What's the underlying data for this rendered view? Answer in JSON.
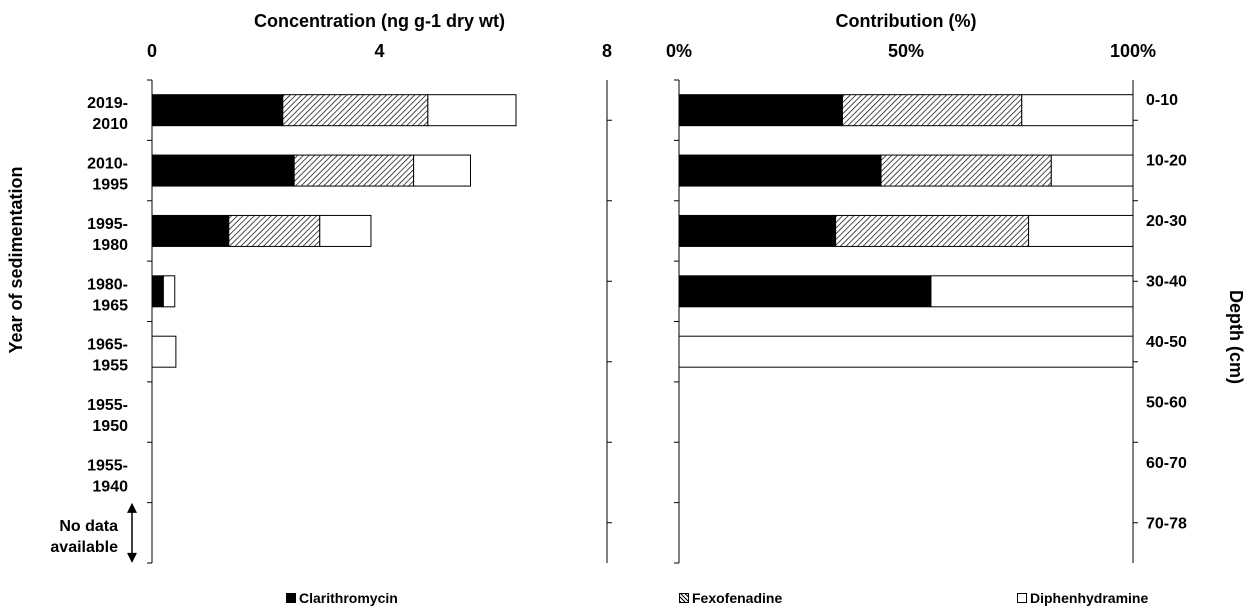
{
  "chart_data": [
    {
      "type": "bar",
      "orientation": "horizontal",
      "stacked": true,
      "title": "Concentration (ng g-1 dry wt)",
      "ylabel": "Year of sedimentation",
      "xlim": [
        0,
        8
      ],
      "xticks": [
        "0",
        "4",
        "8"
      ],
      "categories": [
        "2019-2010",
        "2010-1995",
        "1995-1980",
        "1980-1965",
        "1965-1955",
        "1955-1950",
        "1955-1940",
        "No data available"
      ],
      "category_lines": [
        [
          "2019-",
          "2010"
        ],
        [
          "2010-",
          "1995"
        ],
        [
          "1995-",
          "1980"
        ],
        [
          "1980-",
          "1965"
        ],
        [
          "1965-",
          "1955"
        ],
        [
          "1955-",
          "1950"
        ],
        [
          "1955-",
          "1940"
        ],
        [
          "No data",
          "available"
        ]
      ],
      "series": [
        {
          "name": "Clarithromycin",
          "values": [
            2.3,
            2.5,
            1.35,
            0.2,
            0,
            0,
            0,
            0
          ]
        },
        {
          "name": "Fexofenadine",
          "values": [
            2.55,
            2.1,
            1.6,
            0,
            0,
            0,
            0,
            0
          ]
        },
        {
          "name": "Diphenhydramine",
          "values": [
            1.55,
            1.0,
            0.9,
            0.2,
            0.42,
            0,
            0,
            0
          ]
        }
      ]
    },
    {
      "type": "bar",
      "orientation": "horizontal",
      "stacked": true,
      "percent": true,
      "title": "Contribution (%)",
      "ylabel": "Depth (cm)",
      "xlim": [
        0,
        100
      ],
      "xticks": [
        "0%",
        "50%",
        "100%"
      ],
      "categories": [
        "0-10",
        "10-20",
        "20-30",
        "30-40",
        "40-50",
        "50-60",
        "60-70",
        "70-78"
      ],
      "series": [
        {
          "name": "Clarithromycin",
          "values": [
            36,
            44.5,
            34.5,
            55.5,
            0,
            0,
            0,
            0
          ]
        },
        {
          "name": "Fexofenadine",
          "values": [
            39.5,
            37.5,
            42.5,
            0,
            0,
            0,
            0,
            0
          ]
        },
        {
          "name": "Diphenhydramine",
          "values": [
            24.5,
            18,
            23,
            44.5,
            100,
            0,
            0,
            0
          ]
        }
      ]
    }
  ],
  "legend": {
    "items": [
      {
        "label": "Clarithromycin",
        "style": "solid"
      },
      {
        "label": "Fexofenadine",
        "style": "hatch"
      },
      {
        "label": "Diphenhydramine",
        "style": "white"
      }
    ],
    "position": "bottom"
  },
  "colors": {
    "clarithromycin": "#000000",
    "fexofenadine": "hatch",
    "diphenhydramine": "#ffffff"
  }
}
